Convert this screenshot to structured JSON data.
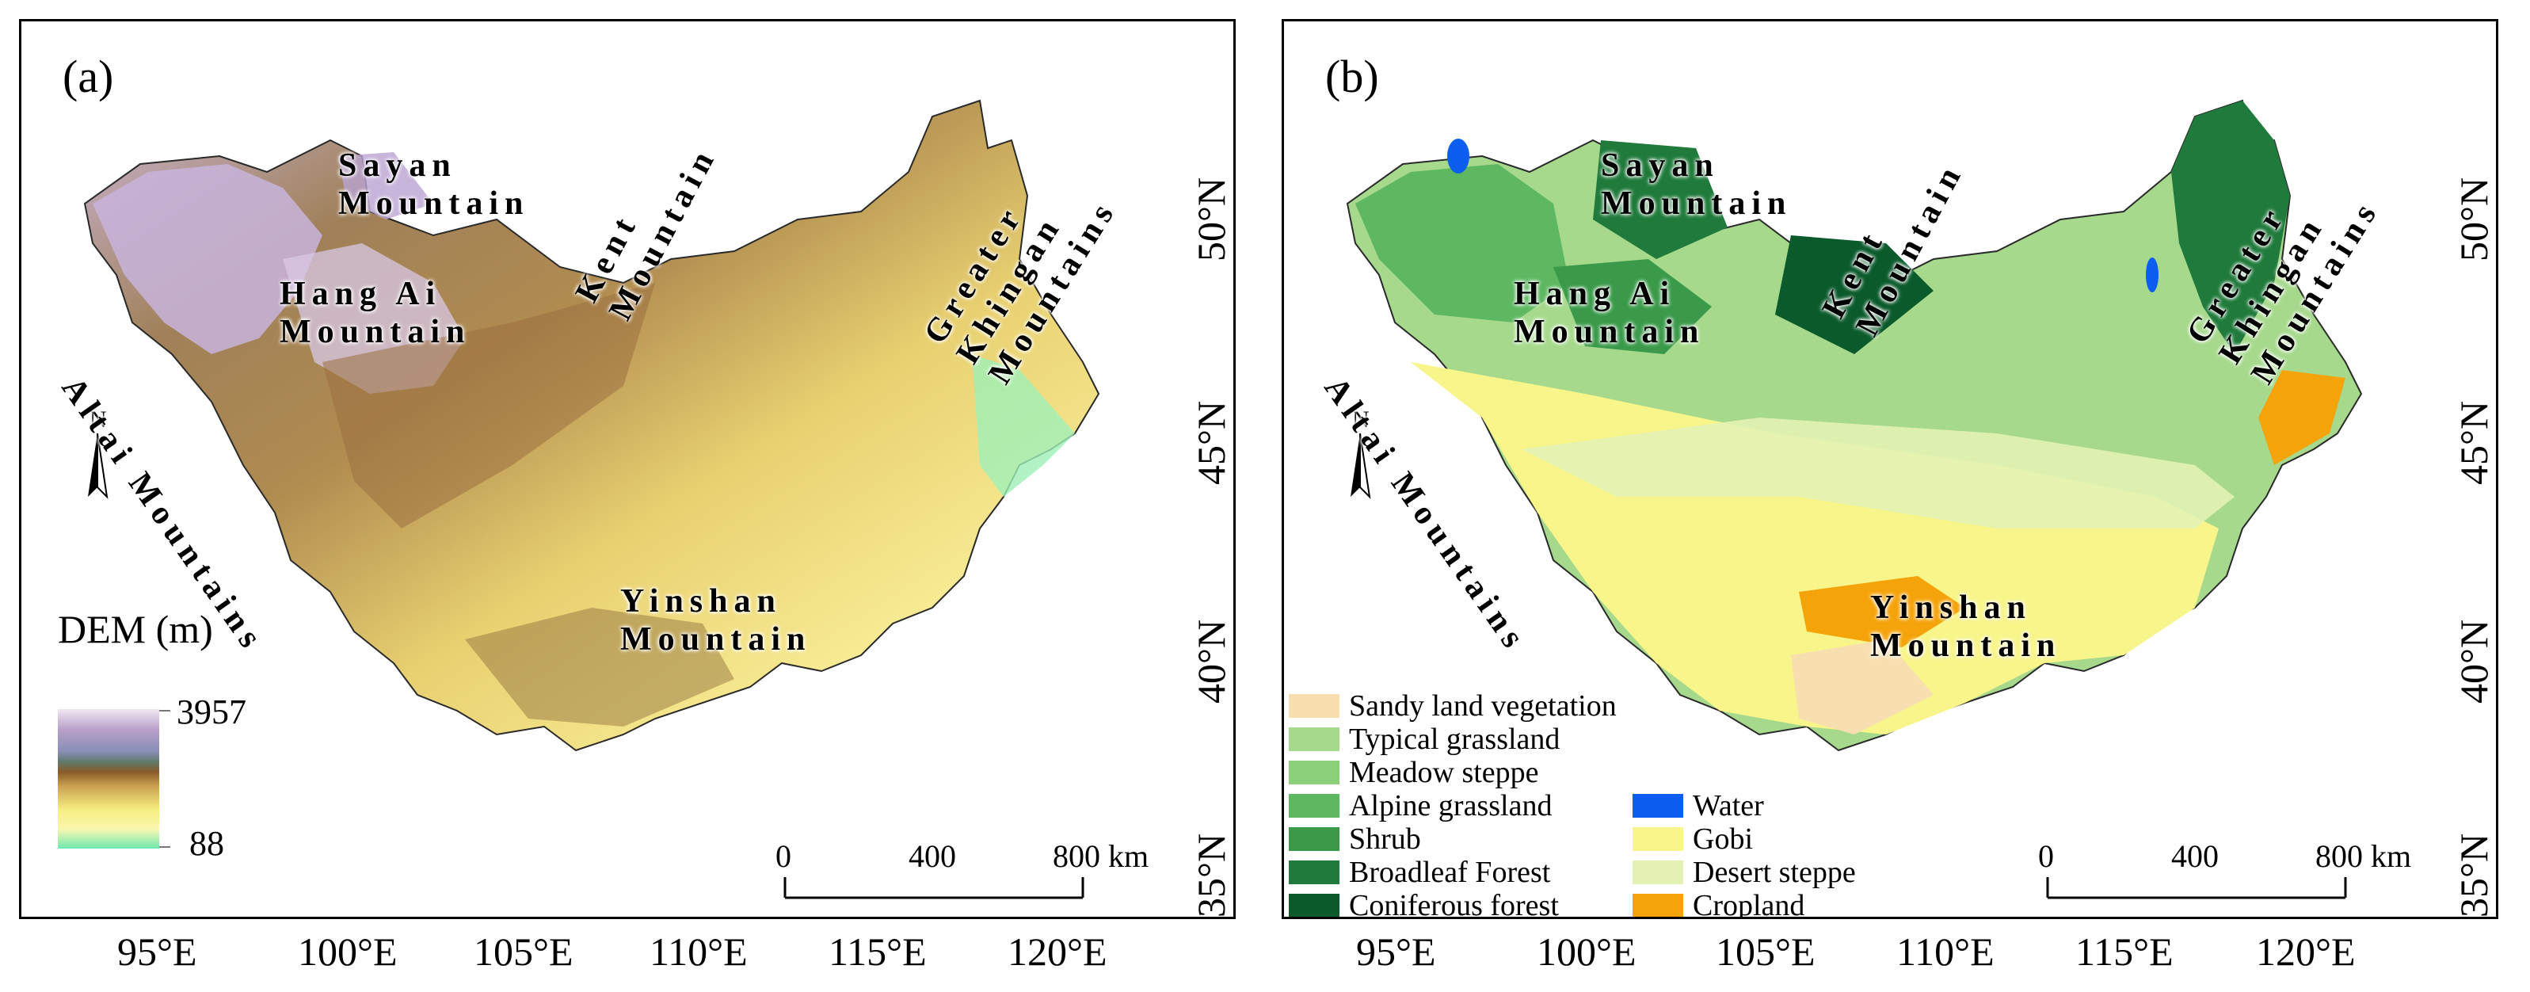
{
  "panel_a": {
    "label": "(a)",
    "north": "N",
    "legend": {
      "title": "DEM (m)",
      "max": "3957",
      "min": "88"
    },
    "scale": {
      "t0": "0",
      "t1": "400",
      "t2": "800 km"
    },
    "mountains": {
      "sayan": "Sayan\nMountain",
      "hangai": "Hang Ai\nMountain",
      "altai": "Altai Mountains",
      "kent": "Kent\nMountain",
      "khingan": "Greater\nKhingan\nMountains",
      "yinshan": "Yinshan\nMountain"
    },
    "x_ticks": [
      "95°E",
      "100°E",
      "105°E",
      "110°E",
      "115°E",
      "120°E"
    ]
  },
  "panel_b": {
    "label": "(b)",
    "north": "N",
    "scale": {
      "t0": "0",
      "t1": "400",
      "t2": "800 km"
    },
    "mountains": {
      "sayan": "Sayan\nMountain",
      "hangai": "Hang Ai\nMountain",
      "altai": "Altai Mountains",
      "kent": "Kent\nMountain",
      "khingan": "Greater\nKhingan\nMountains",
      "yinshan": "Yinshan\nMountain"
    },
    "x_ticks": [
      "95°E",
      "100°E",
      "105°E",
      "110°E",
      "115°E",
      "120°E"
    ],
    "y_ticks": [
      "50°N",
      "45°N",
      "40°N",
      "35°N"
    ],
    "legend_left": [
      {
        "label": "Sandy land vegetation",
        "color": "#f8dfb0"
      },
      {
        "label": "Typical grassland",
        "color": "#a6d98c"
      },
      {
        "label": "Meadow steppe",
        "color": "#8ccf7a"
      },
      {
        "label": "Alpine grassland",
        "color": "#5db861"
      },
      {
        "label": "Shrub",
        "color": "#3a9a4a"
      },
      {
        "label": "Broadleaf Forest",
        "color": "#1f7a3b"
      },
      {
        "label": "Coniferous forest",
        "color": "#0b5a2c"
      }
    ],
    "legend_right": [
      {
        "label": "Water",
        "color": "#0b5ef0"
      },
      {
        "label": "Gobi",
        "color": "#f8f58a"
      },
      {
        "label": "Desert steppe",
        "color": "#e3f2b2"
      },
      {
        "label": "Cropland",
        "color": "#f5a30a"
      }
    ]
  },
  "y_ticks_a": [
    "50°N",
    "45°N",
    "40°N",
    "35°N"
  ]
}
